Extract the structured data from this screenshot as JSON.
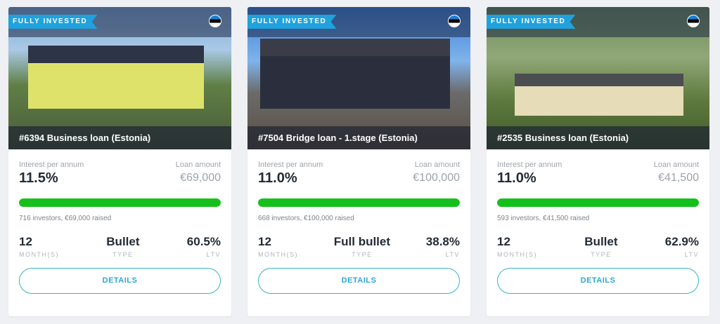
{
  "cards": [
    {
      "badge": "FULLY INVESTED",
      "flag": "estonia-flag",
      "title": "#6394 Business loan (Estonia)",
      "interest_label": "Interest per annum",
      "interest": "11.5%",
      "amount_label": "Loan amount",
      "amount": "€69,000",
      "progress_percent": 100,
      "investors": "716 investors, €69,000 raised",
      "term": "12",
      "term_label": "MONTH(S)",
      "type": "Bullet",
      "type_label": "TYPE",
      "ltv": "60.5%",
      "ltv_label": "LTV",
      "button": "DETAILS"
    },
    {
      "badge": "FULLY INVESTED",
      "flag": "estonia-flag",
      "title": "#7504 Bridge loan - 1.stage (Estonia)",
      "interest_label": "Interest per annum",
      "interest": "11.0%",
      "amount_label": "Loan amount",
      "amount": "€100,000",
      "progress_percent": 100,
      "investors": "668 investors, €100,000 raised",
      "term": "12",
      "term_label": "MONTH(S)",
      "type": "Full bullet",
      "type_label": "TYPE",
      "ltv": "38.8%",
      "ltv_label": "LTV",
      "button": "DETAILS"
    },
    {
      "badge": "FULLY INVESTED",
      "flag": "estonia-flag",
      "title": "#2535 Business loan (Estonia)",
      "interest_label": "Interest per annum",
      "interest": "11.0%",
      "amount_label": "Loan amount",
      "amount": "€41,500",
      "progress_percent": 100,
      "investors": "593 investors, €41,500 raised",
      "term": "12",
      "term_label": "MONTH(S)",
      "type": "Bullet",
      "type_label": "TYPE",
      "ltv": "62.9%",
      "ltv_label": "LTV",
      "button": "DETAILS"
    }
  ],
  "colors": {
    "accent": "#1fa2dd",
    "progress": "#16c01c",
    "button_border": "#3ab0c8"
  }
}
